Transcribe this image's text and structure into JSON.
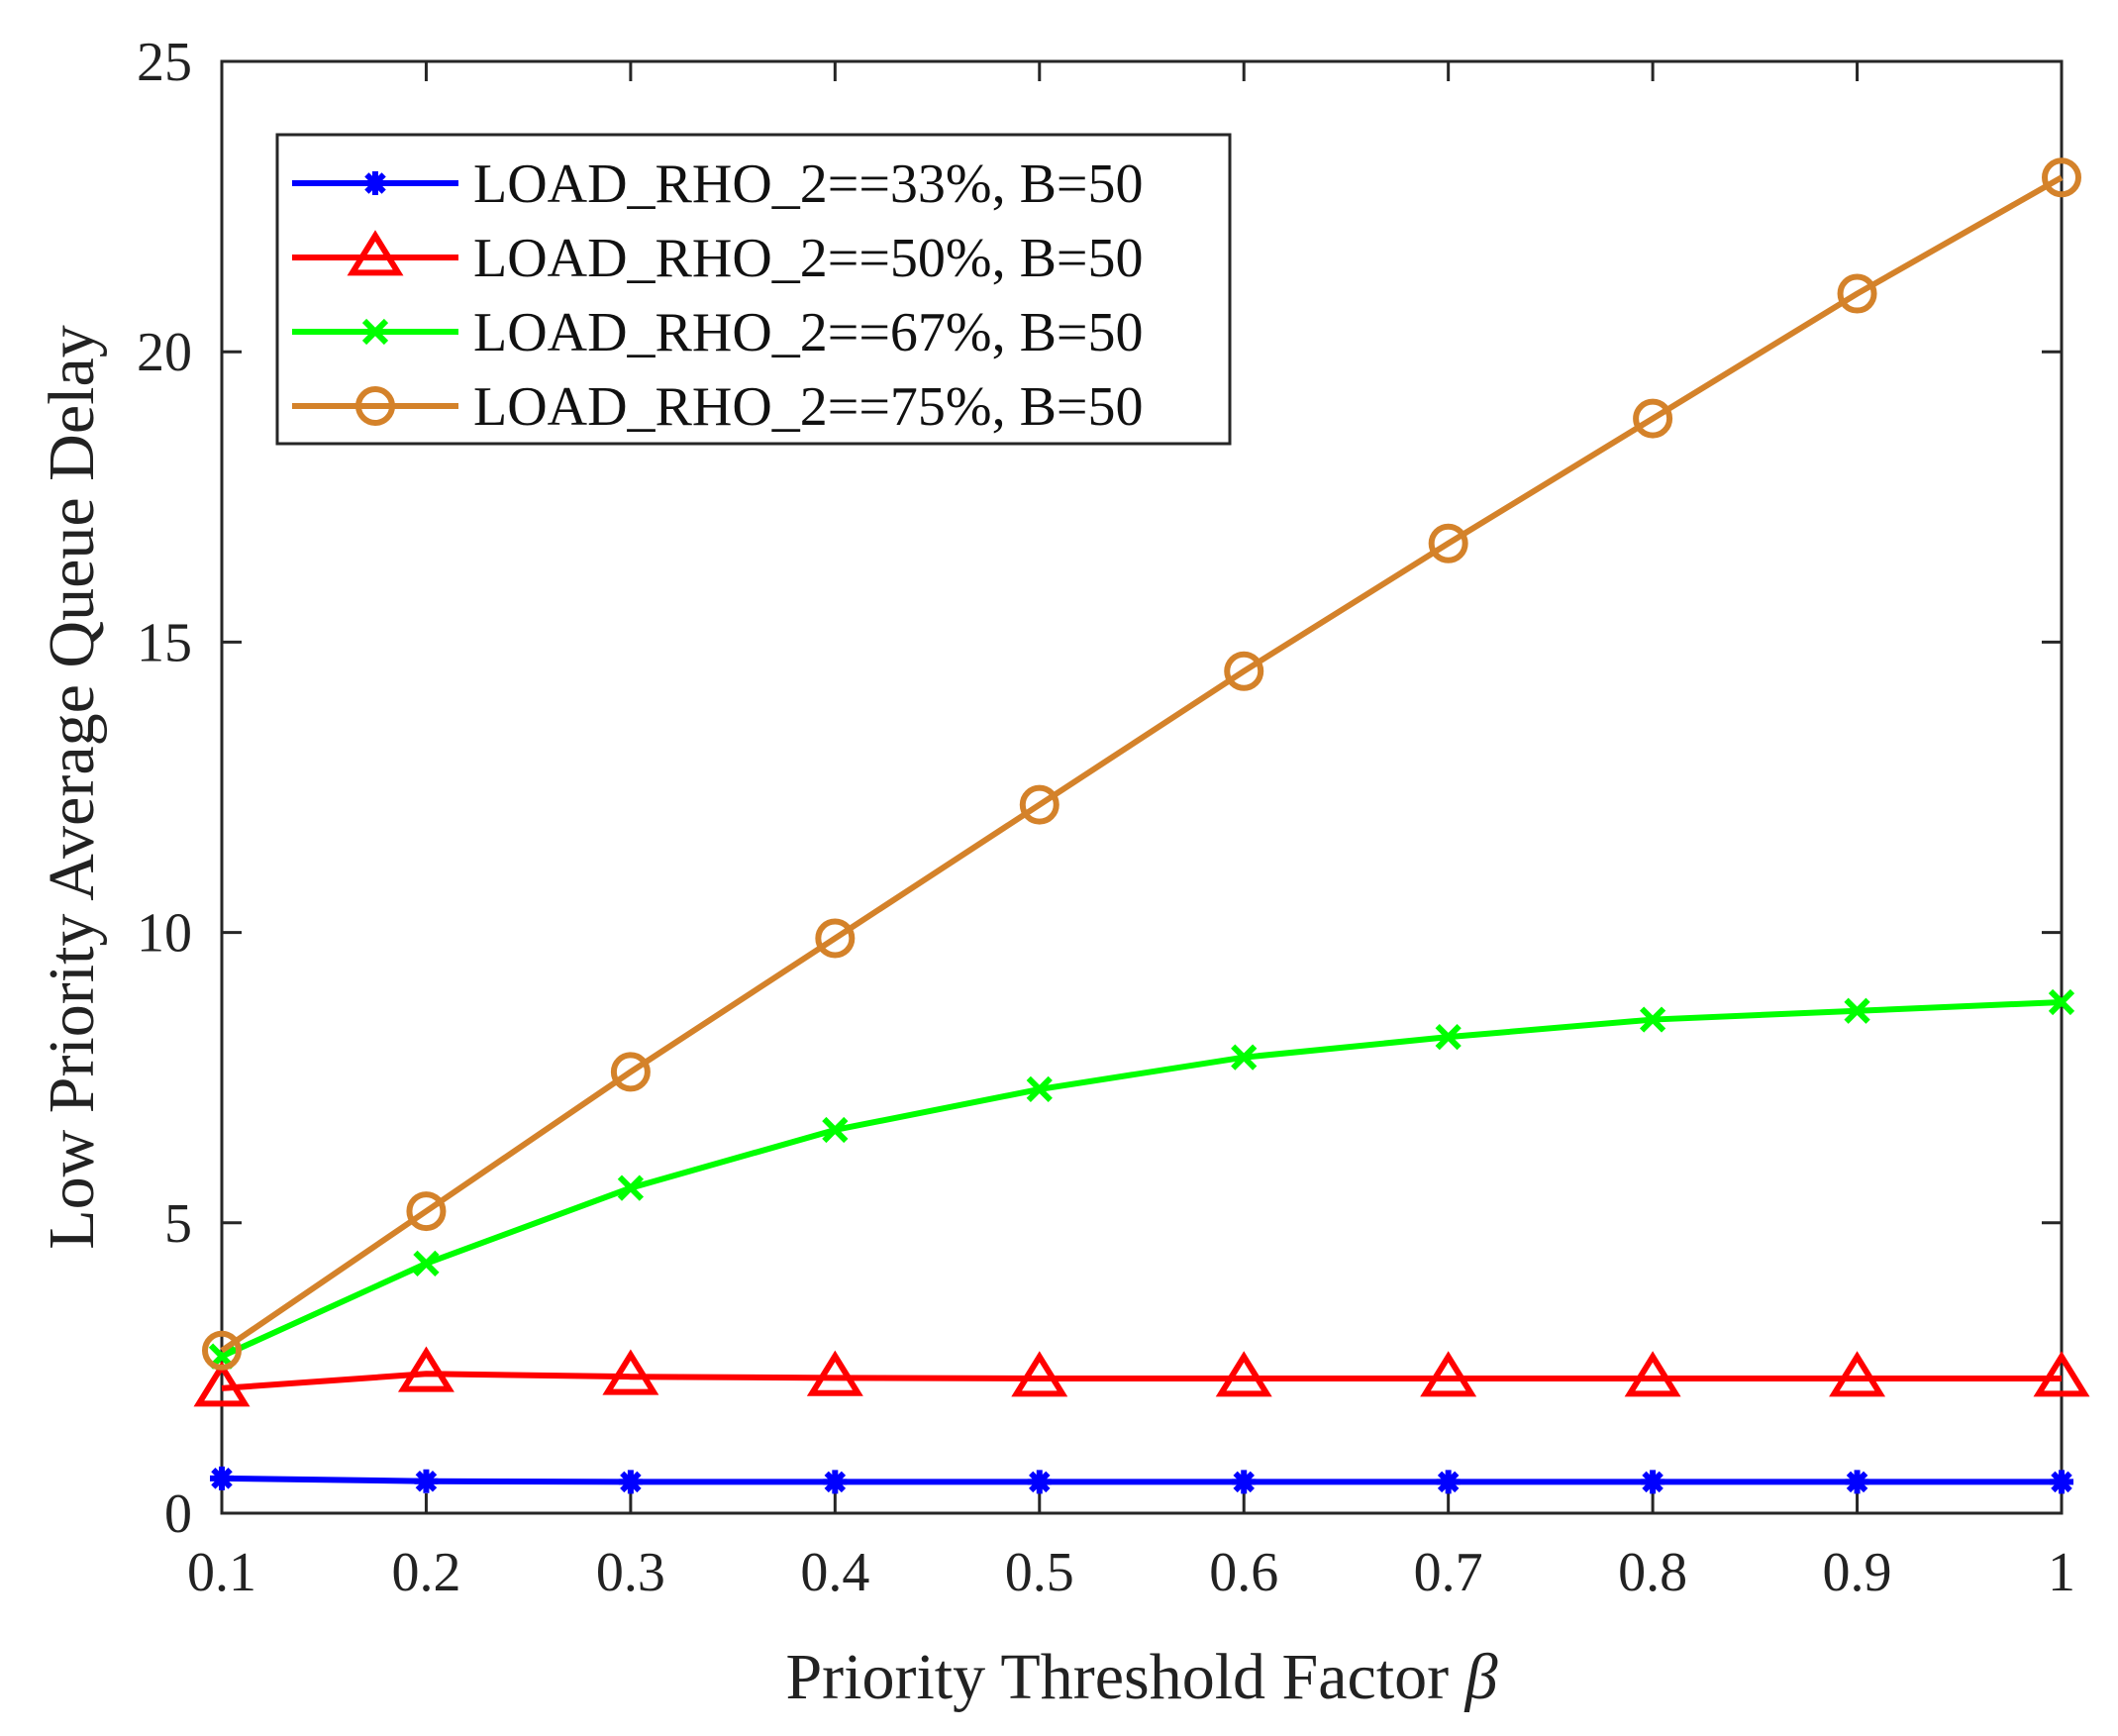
{
  "chart_data": {
    "type": "line",
    "xlabel": "Priority Threshold Factor",
    "xlabel_symbol": "β",
    "ylabel": "Low Priority Average Queue Delay",
    "x": [
      0.1,
      0.2,
      0.3,
      0.4,
      0.5,
      0.6,
      0.7,
      0.8,
      0.9,
      1.0
    ],
    "x_tick_labels": [
      "0.1",
      "0.2",
      "0.3",
      "0.4",
      "0.5",
      "0.6",
      "0.7",
      "0.8",
      "0.9",
      "1"
    ],
    "xlim": [
      0.1,
      1.0
    ],
    "ylim": [
      0,
      25
    ],
    "y_ticks": [
      0,
      5,
      10,
      15,
      20,
      25
    ],
    "y_tick_labels": [
      "0",
      "5",
      "10",
      "15",
      "20",
      "25"
    ],
    "grid": false,
    "legend_position": "top-left",
    "series": [
      {
        "name": "LOAD_RHO_2==33%, B=50",
        "color": "#0000ff",
        "marker": "asterisk",
        "values": [
          0.6,
          0.55,
          0.54,
          0.54,
          0.54,
          0.54,
          0.54,
          0.54,
          0.54,
          0.54
        ]
      },
      {
        "name": "LOAD_RHO_2==50%, B=50",
        "color": "#ff0000",
        "marker": "triangle",
        "values": [
          2.15,
          2.4,
          2.35,
          2.33,
          2.32,
          2.32,
          2.32,
          2.32,
          2.32,
          2.32
        ]
      },
      {
        "name": "LOAD_RHO_2==67%, B=50",
        "color": "#00ff00",
        "marker": "x",
        "values": [
          2.7,
          4.3,
          5.6,
          6.6,
          7.3,
          7.85,
          8.2,
          8.5,
          8.65,
          8.8
        ]
      },
      {
        "name": "LOAD_RHO_2==75%, B=50",
        "color": "#d4822a",
        "marker": "circle",
        "values": [
          2.8,
          5.2,
          7.6,
          9.9,
          12.2,
          14.5,
          16.7,
          18.85,
          21.0,
          23.0
        ]
      }
    ]
  }
}
